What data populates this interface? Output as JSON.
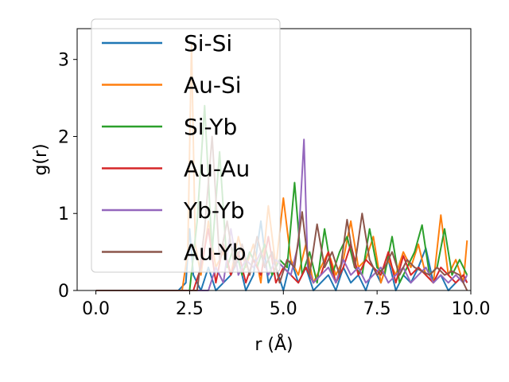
{
  "chart_data": {
    "type": "line",
    "xlabel": "r (Å)",
    "ylabel": "g(r)",
    "xlim": [
      -0.5,
      10.0
    ],
    "ylim": [
      0,
      3.4
    ],
    "x_ticks": [
      "0.0",
      "2.5",
      "5.0",
      "7.5",
      "10.0"
    ],
    "y_ticks": [
      "0",
      "1",
      "2",
      "3"
    ],
    "grid": false,
    "legend_position": "top-left",
    "series": [
      {
        "name": "Si-Si",
        "color": "#1f77b4",
        "x": [
          0,
          2.2,
          2.4,
          2.5,
          2.6,
          2.8,
          3.0,
          3.2,
          3.4,
          3.6,
          3.8,
          4.0,
          4.2,
          4.4,
          4.6,
          4.8,
          5.0,
          5.2,
          5.4,
          5.6,
          5.8,
          6.0,
          6.2,
          6.4,
          6.6,
          6.8,
          7.0,
          7.2,
          7.4,
          7.6,
          7.8,
          8.0,
          8.2,
          8.4,
          8.6,
          8.8,
          9.0,
          9.2,
          9.4,
          9.6,
          9.8,
          9.9
        ],
        "values": [
          0,
          0,
          0.1,
          0.8,
          0.2,
          0,
          0.3,
          0,
          0.1,
          0.2,
          0.4,
          0,
          0.2,
          0.9,
          0.1,
          0.3,
          0,
          0.4,
          0.1,
          0.3,
          0,
          0.1,
          0.2,
          0,
          0.3,
          0.1,
          0.2,
          0,
          0.3,
          0.1,
          0.4,
          0,
          0.2,
          0.1,
          0.3,
          0.55,
          0.1,
          0.2,
          0,
          0.1,
          0.2,
          0.1
        ]
      },
      {
        "name": "Au-Si",
        "color": "#ff7f0e",
        "x": [
          0,
          2.3,
          2.45,
          2.55,
          2.65,
          2.8,
          3.0,
          3.2,
          3.4,
          3.6,
          3.8,
          4.0,
          4.2,
          4.4,
          4.6,
          4.8,
          5.0,
          5.2,
          5.4,
          5.6,
          5.8,
          6.0,
          6.2,
          6.4,
          6.6,
          6.8,
          7.0,
          7.2,
          7.4,
          7.6,
          7.8,
          8.0,
          8.2,
          8.4,
          8.6,
          8.8,
          9.0,
          9.2,
          9.4,
          9.6,
          9.8,
          9.9
        ],
        "values": [
          0,
          0,
          0.5,
          3.2,
          0.6,
          0.2,
          0.9,
          0.3,
          0.5,
          0.2,
          0.7,
          0.3,
          0.6,
          0.1,
          1.1,
          0.3,
          1.2,
          0.4,
          0.2,
          0.6,
          0.1,
          0.3,
          0.5,
          0.2,
          0.4,
          0.9,
          0.3,
          0.4,
          0.7,
          0.1,
          0.4,
          0.2,
          0.5,
          0.3,
          0.6,
          0.2,
          0.1,
          0.98,
          0.2,
          0.4,
          0.1,
          0.65
        ]
      },
      {
        "name": "Si-Yb",
        "color": "#2ca02c",
        "x": [
          0,
          2.5,
          2.7,
          2.9,
          3.1,
          3.3,
          3.5,
          3.7,
          3.9,
          4.1,
          4.3,
          4.5,
          4.7,
          4.9,
          5.1,
          5.3,
          5.5,
          5.7,
          5.9,
          6.1,
          6.3,
          6.5,
          6.7,
          6.9,
          7.1,
          7.3,
          7.5,
          7.7,
          7.9,
          8.1,
          8.3,
          8.5,
          8.7,
          8.9,
          9.1,
          9.3,
          9.5,
          9.7,
          9.9
        ],
        "values": [
          0,
          0,
          0.9,
          2.4,
          0.5,
          1.8,
          0.3,
          0.6,
          0.2,
          0.5,
          0.3,
          0.6,
          0.2,
          0.4,
          0.3,
          1.4,
          0.2,
          0.5,
          0.1,
          0.8,
          0.2,
          0.5,
          0.7,
          0.3,
          0.2,
          0.8,
          0.3,
          0.2,
          0.7,
          0.1,
          0.3,
          0.5,
          0.85,
          0.2,
          0.3,
          0.8,
          0.2,
          0.4,
          0.2
        ]
      },
      {
        "name": "Au-Au",
        "color": "#d62728",
        "x": [
          0,
          2.6,
          2.8,
          3.0,
          3.2,
          3.4,
          3.6,
          3.8,
          4.0,
          4.2,
          4.4,
          4.6,
          4.8,
          5.0,
          5.2,
          5.4,
          5.6,
          5.8,
          6.0,
          6.2,
          6.4,
          6.6,
          6.8,
          7.0,
          7.2,
          7.4,
          7.6,
          7.8,
          8.0,
          8.2,
          8.4,
          8.6,
          8.8,
          9.0,
          9.2,
          9.4,
          9.6,
          9.8,
          9.9
        ],
        "values": [
          0,
          0,
          0.3,
          0.8,
          0.1,
          0.6,
          0.2,
          0.5,
          0.1,
          0.4,
          0.2,
          0.7,
          0.1,
          0.3,
          0.2,
          0.1,
          0.3,
          0.1,
          0.2,
          0.5,
          0.1,
          0.3,
          0.6,
          0.2,
          0.4,
          0.3,
          0.2,
          0.5,
          0.1,
          0.45,
          0.2,
          0.3,
          0.2,
          0.1,
          0.3,
          0.2,
          0.1,
          0.2,
          0.1
        ]
      },
      {
        "name": "Yb-Yb",
        "color": "#9467bd",
        "x": [
          0,
          3.0,
          3.2,
          3.4,
          3.6,
          3.8,
          4.0,
          4.2,
          4.4,
          4.6,
          4.8,
          5.0,
          5.2,
          5.4,
          5.55,
          5.65,
          5.8,
          6.0,
          6.2,
          6.4,
          6.6,
          6.8,
          7.0,
          7.2,
          7.4,
          7.6,
          7.8,
          8.0,
          8.2,
          8.4,
          8.6,
          8.8,
          9.0,
          9.2,
          9.4,
          9.6,
          9.8,
          9.9
        ],
        "values": [
          0,
          0,
          0.3,
          0.1,
          0.8,
          0.2,
          0.4,
          0.3,
          0.5,
          0.2,
          0.4,
          0.3,
          0.2,
          0.6,
          1.96,
          0.3,
          0.1,
          0.2,
          0.3,
          0.1,
          0.4,
          0.2,
          0.3,
          0.1,
          0.2,
          0.3,
          0.1,
          0.2,
          0.3,
          0.1,
          0.2,
          0.3,
          0.1,
          0.2,
          0.1,
          0.2,
          0.1,
          0.2
        ]
      },
      {
        "name": "Au-Yb",
        "color": "#8c564b",
        "x": [
          0,
          2.7,
          2.9,
          3.1,
          3.3,
          3.5,
          3.7,
          3.9,
          4.1,
          4.3,
          4.5,
          4.7,
          4.9,
          5.1,
          5.3,
          5.5,
          5.7,
          5.9,
          6.1,
          6.3,
          6.5,
          6.7,
          6.9,
          7.1,
          7.3,
          7.5,
          7.7,
          7.9,
          8.1,
          8.3,
          8.5,
          8.7,
          8.9,
          9.1,
          9.3,
          9.5,
          9.7,
          9.9
        ],
        "values": [
          0,
          0,
          0.8,
          2.0,
          0.4,
          0.9,
          0.3,
          0.6,
          0.2,
          0.7,
          0.3,
          0.5,
          0.1,
          0.4,
          0.3,
          1.02,
          0.2,
          0.86,
          0.3,
          0.5,
          0.2,
          0.92,
          0.3,
          1.0,
          0.4,
          0.2,
          0.3,
          0.5,
          0.2,
          0.4,
          0.3,
          0.25,
          0.2,
          0.3,
          0.2,
          0.25,
          0.2,
          0.0
        ]
      }
    ]
  }
}
